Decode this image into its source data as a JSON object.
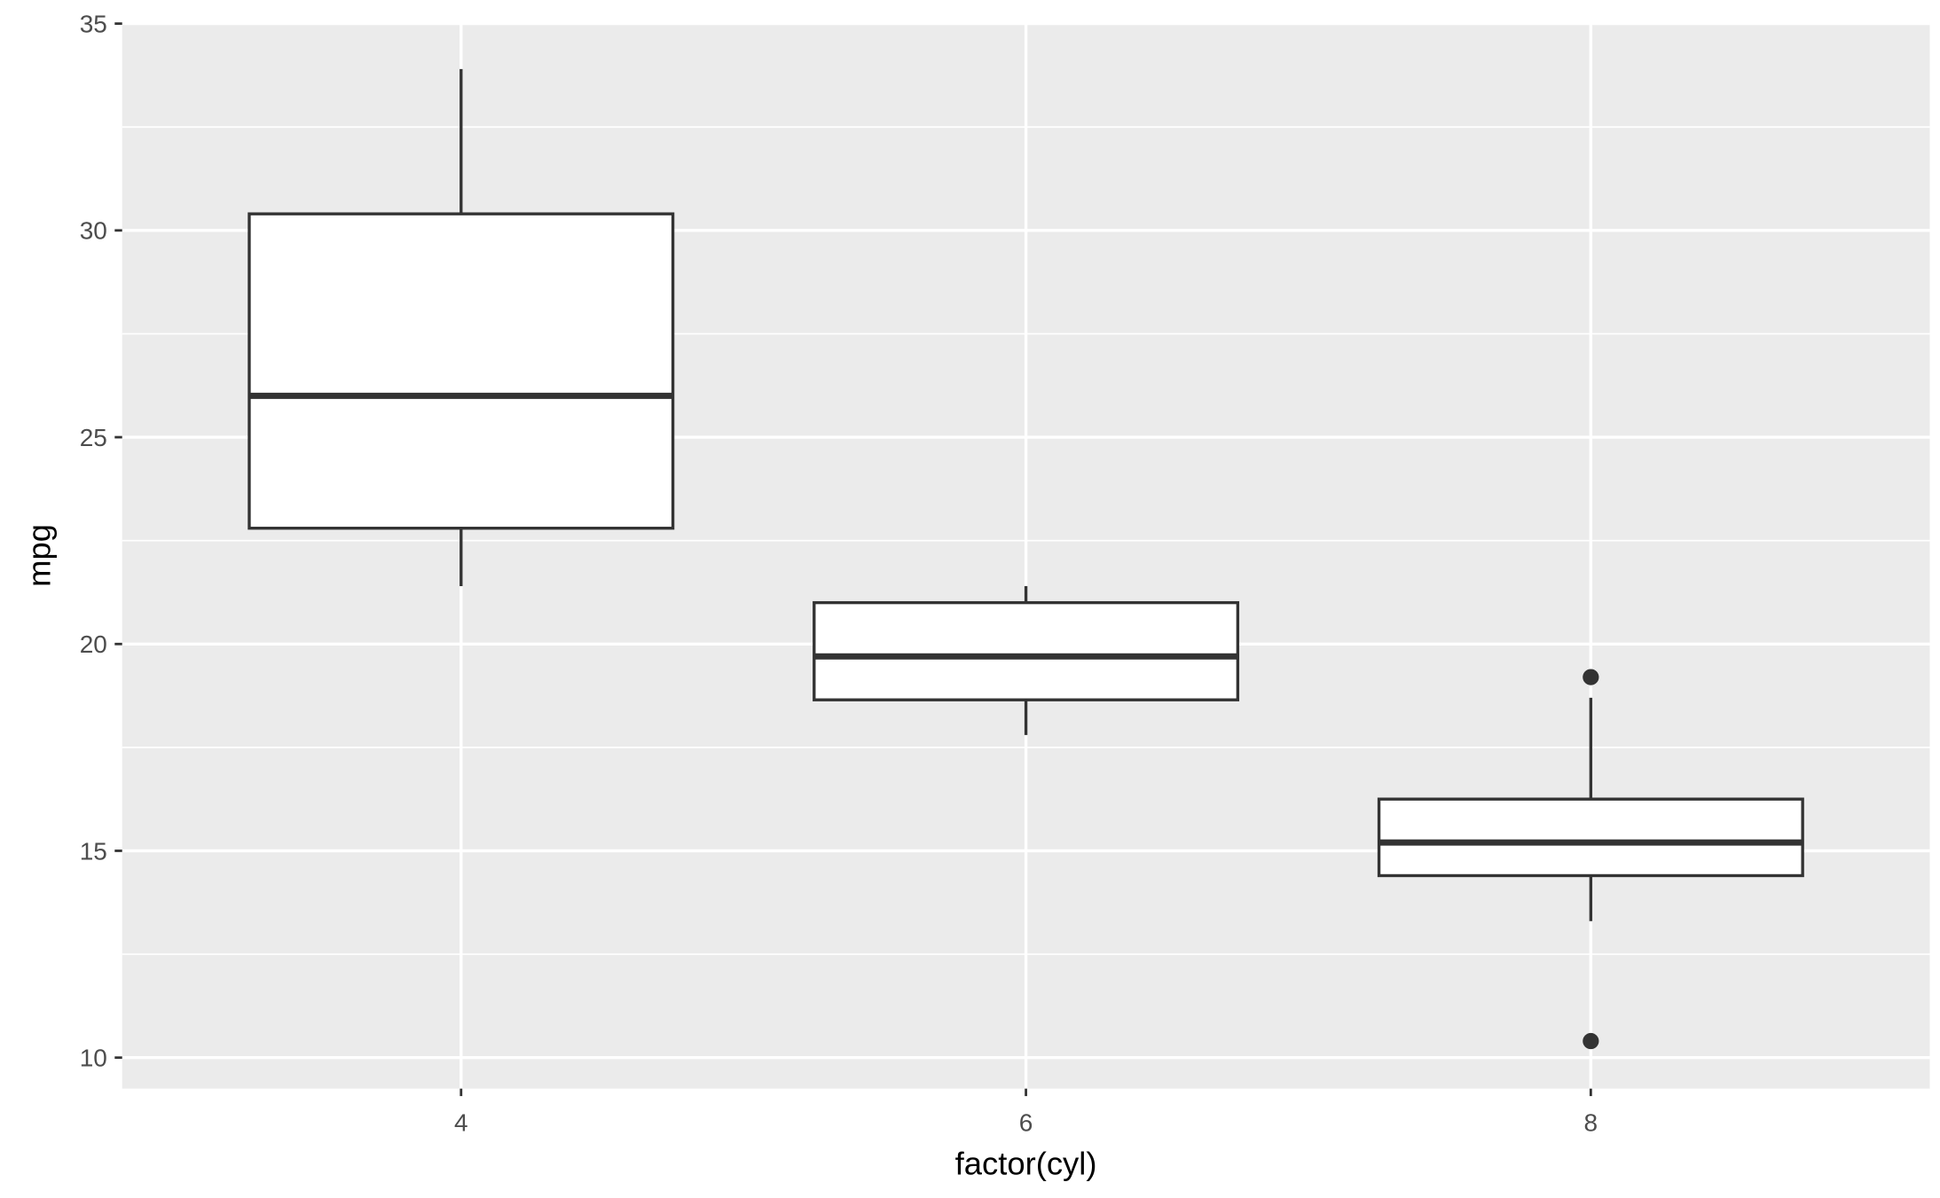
{
  "chart_data": {
    "type": "boxplot",
    "x_label": "factor(cyl)",
    "y_label": "mpg",
    "categories": [
      "4",
      "6",
      "8"
    ],
    "boxes": [
      {
        "min": 21.4,
        "q1": 22.8,
        "median": 26,
        "q3": 30.4,
        "max": 33.9,
        "outliers": []
      },
      {
        "min": 17.8,
        "q1": 18.65,
        "median": 19.7,
        "q3": 21,
        "max": 21.4,
        "outliers": []
      },
      {
        "min": 13.3,
        "q1": 14.4,
        "median": 15.2,
        "q3": 16.25,
        "max": 18.7,
        "outliers": [
          19.2,
          10.4
        ]
      }
    ],
    "ylim": [
      9.25,
      35.03
    ],
    "yticks": [
      10,
      15,
      20,
      25,
      30,
      35
    ],
    "y_minor_ticks": [
      12.5,
      17.5,
      22.5,
      27.5,
      32.5
    ],
    "grid": true,
    "panel_color": "#ebebeb",
    "grid_color": "#ffffff",
    "box_fill": "#ffffff",
    "line_color": "#333333"
  }
}
